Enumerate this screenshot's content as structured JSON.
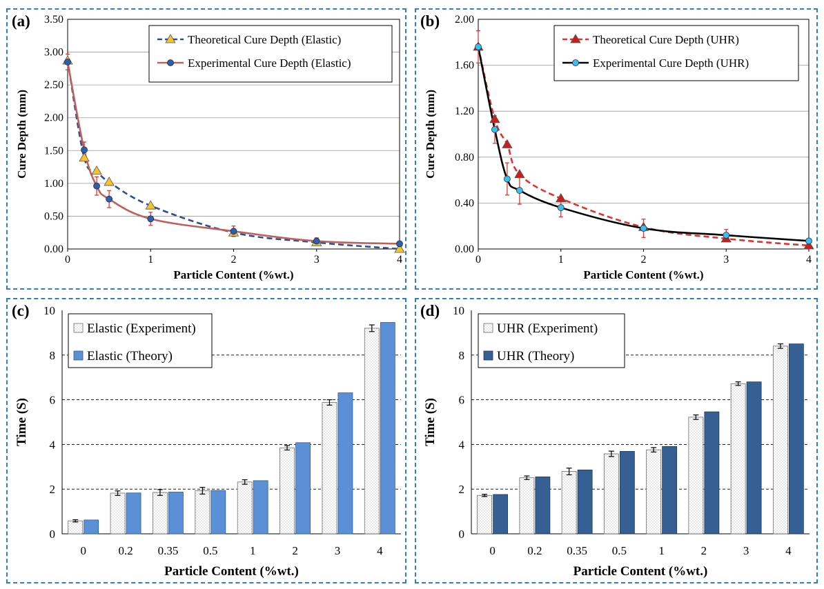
{
  "chart_data": [
    {
      "panel": "(a)",
      "type": "line",
      "xlabel": "Particle Content (%wt.)",
      "ylabel": "Cure Depth (mm)",
      "xlim": [
        0,
        4
      ],
      "ylim": [
        0,
        3.5
      ],
      "xticks": [
        "0",
        "1",
        "2",
        "3",
        "4"
      ],
      "yticks": [
        "0.00",
        "0.50",
        "1.00",
        "1.50",
        "2.00",
        "2.50",
        "3.00",
        "3.50"
      ],
      "grid": "horizontal",
      "legend": "top-right",
      "series": [
        {
          "name": "Theoretical Cure Depth (Elastic)",
          "style": "dashed",
          "marker": "triangle",
          "color": "#2e4f8f",
          "marker_color": "#f4c430",
          "x": [
            0,
            0.2,
            0.35,
            0.5,
            1,
            2,
            3,
            4
          ],
          "y": [
            2.87,
            1.39,
            1.19,
            1.02,
            0.66,
            0.25,
            0.1,
            0.0
          ]
        },
        {
          "name": "Experimental Cure Depth (Elastic)",
          "style": "solid",
          "marker": "circle",
          "color": "#c0605a",
          "marker_color": "#2e5fa8",
          "x": [
            0,
            0.2,
            0.35,
            0.5,
            1,
            2,
            3,
            4
          ],
          "y": [
            2.85,
            1.51,
            0.96,
            0.76,
            0.46,
            0.27,
            0.12,
            0.08
          ],
          "error": [
            0.12,
            0.12,
            0.14,
            0.13,
            0.1,
            0.08,
            0.05,
            0.02
          ]
        }
      ]
    },
    {
      "panel": "(b)",
      "type": "line",
      "xlabel": "Particle Content (%wt.)",
      "ylabel": "Cure Depth (mm)",
      "xlim": [
        0,
        4
      ],
      "ylim": [
        0,
        2.0
      ],
      "xticks": [
        "0",
        "1",
        "2",
        "3",
        "4"
      ],
      "yticks": [
        "0.00",
        "0.40",
        "0.80",
        "1.20",
        "1.60",
        "2.00"
      ],
      "grid": "horizontal",
      "legend": "top-right",
      "series": [
        {
          "name": "Theoretical Cure Depth (UHR)",
          "style": "dashed",
          "marker": "triangle",
          "color": "#e03030",
          "marker_color": "#c81e1e",
          "x": [
            0,
            0.2,
            0.35,
            0.5,
            1,
            2,
            3,
            4
          ],
          "y": [
            1.76,
            1.13,
            0.91,
            0.65,
            0.44,
            0.19,
            0.09,
            0.03
          ]
        },
        {
          "name": "Experimental Cure Depth (UHR)",
          "style": "solid",
          "marker": "circle",
          "color": "#000000",
          "marker_color": "#3cc0ea",
          "x": [
            0,
            0.2,
            0.35,
            0.5,
            1,
            2,
            3,
            4
          ],
          "y": [
            1.76,
            1.04,
            0.61,
            0.51,
            0.36,
            0.18,
            0.12,
            0.07
          ],
          "error": [
            0.14,
            0.12,
            0.14,
            0.12,
            0.08,
            0.08,
            0.05,
            0.02
          ]
        }
      ]
    },
    {
      "panel": "(c)",
      "type": "bar",
      "xlabel": "Particle Content (%wt.)",
      "ylabel": "Time (S)",
      "ylim": [
        0,
        10
      ],
      "yticks": [
        "0",
        "2",
        "4",
        "6",
        "8",
        "10"
      ],
      "grid": "horizontal-dashed",
      "legend": "top-left",
      "categories": [
        "0",
        "0.2",
        "0.35",
        "0.5",
        "1",
        "2",
        "3",
        "4"
      ],
      "series": [
        {
          "name": "Elastic (Experiment)",
          "pattern": "dotted",
          "color": "#ffffff",
          "values": [
            0.58,
            1.82,
            1.85,
            1.93,
            2.32,
            3.85,
            5.88,
            9.2
          ],
          "error": [
            0.05,
            0.1,
            0.13,
            0.15,
            0.1,
            0.1,
            0.12,
            0.15
          ]
        },
        {
          "name": "Elastic (Theory)",
          "color": "#5b8fd6",
          "values": [
            0.62,
            1.83,
            1.87,
            1.94,
            2.38,
            4.08,
            6.31,
            9.46
          ]
        }
      ]
    },
    {
      "panel": "(d)",
      "type": "bar",
      "xlabel": "Particle Content (%wt.)",
      "ylabel": "Time (S)",
      "ylim": [
        0,
        10
      ],
      "yticks": [
        "0",
        "2",
        "4",
        "6",
        "8",
        "10"
      ],
      "grid": "horizontal-dashed",
      "legend": "top-left",
      "categories": [
        "0",
        "0.2",
        "0.35",
        "0.5",
        "1",
        "2",
        "3",
        "4"
      ],
      "series": [
        {
          "name": "UHR (Experiment)",
          "pattern": "dotted",
          "color": "#ffffff",
          "values": [
            1.72,
            2.51,
            2.79,
            3.58,
            3.76,
            5.22,
            6.72,
            8.4
          ],
          "error": [
            0.05,
            0.08,
            0.15,
            0.12,
            0.1,
            0.1,
            0.08,
            0.1
          ]
        },
        {
          "name": "UHR (Theory)",
          "color": "#365f93",
          "values": [
            1.76,
            2.55,
            2.86,
            3.69,
            3.91,
            5.46,
            6.8,
            8.5
          ]
        }
      ]
    }
  ]
}
